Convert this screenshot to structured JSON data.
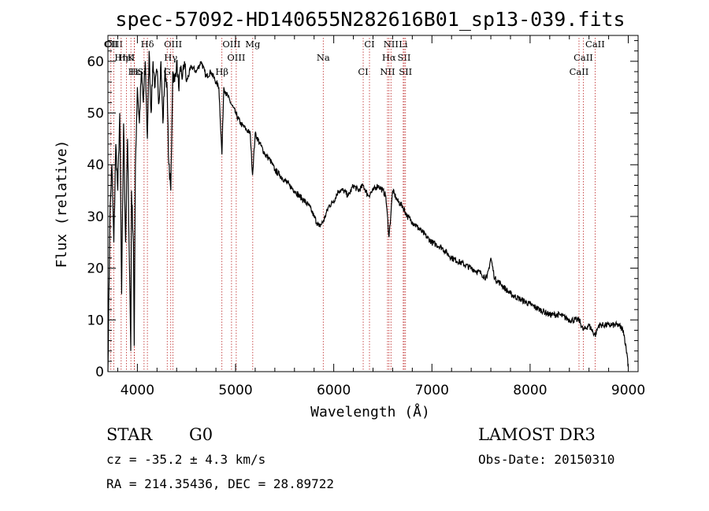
{
  "chart_data": {
    "type": "line",
    "title": "spec-57092-HD140655N282616B01_sp13-039.fits",
    "xlabel": "Wavelength (Å)",
    "ylabel": "Flux (relative)",
    "xlim": [
      3700,
      9100
    ],
    "ylim": [
      0,
      65
    ],
    "xticks": [
      4000,
      5000,
      6000,
      7000,
      8000,
      9000
    ],
    "yticks": [
      0,
      10,
      20,
      30,
      40,
      50,
      60
    ],
    "series": [
      {
        "name": "flux",
        "x": [
          3700,
          3720,
          3740,
          3760,
          3780,
          3800,
          3820,
          3840,
          3860,
          3880,
          3900,
          3920,
          3933,
          3940,
          3960,
          3968,
          3980,
          4000,
          4020,
          4040,
          4060,
          4080,
          4102,
          4120,
          4140,
          4160,
          4180,
          4200,
          4220,
          4240,
          4260,
          4280,
          4300,
          4320,
          4340,
          4360,
          4380,
          4400,
          4420,
          4440,
          4460,
          4480,
          4500,
          4550,
          4600,
          4650,
          4700,
          4750,
          4800,
          4830,
          4861,
          4880,
          4900,
          4950,
          5000,
          5050,
          5100,
          5150,
          5173,
          5200,
          5250,
          5300,
          5350,
          5400,
          5450,
          5500,
          5550,
          5600,
          5650,
          5700,
          5750,
          5800,
          5850,
          5893,
          5950,
          6000,
          6050,
          6100,
          6150,
          6200,
          6250,
          6300,
          6350,
          6400,
          6450,
          6500,
          6530,
          6563,
          6600,
          6650,
          6700,
          6750,
          6800,
          6850,
          6900,
          6950,
          7000,
          7100,
          7200,
          7300,
          7400,
          7500,
          7560,
          7600,
          7640,
          7700,
          7800,
          7900,
          8000,
          8100,
          8200,
          8300,
          8400,
          8500,
          8542,
          8600,
          8662,
          8700,
          8800,
          8900,
          8950,
          8990,
          9000
        ],
        "values": [
          0,
          30,
          40,
          25,
          44,
          35,
          50,
          15,
          48,
          25,
          45,
          20,
          4,
          35,
          25,
          5,
          40,
          55,
          48,
          58,
          52,
          60,
          45,
          62,
          50,
          60,
          55,
          58,
          52,
          60,
          48,
          58,
          56,
          40,
          35,
          58,
          56,
          60,
          55,
          58,
          57,
          60,
          56,
          59,
          58,
          60,
          57,
          58,
          56,
          55,
          42,
          55,
          54,
          52,
          50,
          48,
          47,
          46,
          38,
          46,
          44,
          42,
          41,
          39,
          38,
          37,
          36,
          35,
          34,
          33,
          32,
          30,
          28,
          29,
          32,
          33,
          35,
          35,
          34,
          36,
          35,
          36,
          34,
          35,
          36,
          35,
          34,
          26,
          35,
          33,
          32,
          30,
          29,
          28,
          27,
          26,
          25,
          24,
          22,
          21,
          20,
          19,
          18,
          22,
          18,
          17,
          15,
          14,
          13,
          12,
          11,
          11,
          10,
          10,
          8,
          9,
          7,
          9,
          9,
          9,
          8,
          3,
          1
        ]
      }
    ],
    "line_markers": [
      {
        "label": "Hδ",
        "x": 4102
      },
      {
        "label": "K",
        "x": 3934
      },
      {
        "label": "Hε",
        "x": 3970
      },
      {
        "label": "CII",
        "x": 3730
      },
      {
        "label": "HeI",
        "x": 3889
      },
      {
        "label": "SII",
        "x": 4068
      },
      {
        "label": "OIII",
        "x": 3760
      },
      {
        "label": "Hη",
        "x": 3835
      },
      {
        "label": "H",
        "x": 3968
      },
      {
        "label": "OIII",
        "x": 4363
      },
      {
        "label": "Hγ",
        "x": 4340
      },
      {
        "label": "G",
        "x": 4304
      },
      {
        "label": "OIII",
        "x": 4959
      },
      {
        "label": "OIII",
        "x": 5007
      },
      {
        "label": "Hβ",
        "x": 4861
      },
      {
        "label": "Mg",
        "x": 5175
      },
      {
        "label": "Na",
        "x": 5893
      },
      {
        "label": "CI",
        "x": 6300
      },
      {
        "label": "CI",
        "x": 6364
      },
      {
        "label": "Hα",
        "x": 6563
      },
      {
        "label": "NII",
        "x": 6548
      },
      {
        "label": "NII",
        "x": 6583
      },
      {
        "label": "SII",
        "x": 6717
      },
      {
        "label": "SII",
        "x": 6731
      },
      {
        "label": "Li",
        "x": 6708
      },
      {
        "label": "CaII",
        "x": 8542
      },
      {
        "label": "CaII",
        "x": 8498
      },
      {
        "label": "CaII",
        "x": 8662
      }
    ]
  },
  "info": {
    "object_class": "STAR",
    "subclass": "G0",
    "survey": "LAMOST DR3",
    "redshift": "cz = -35.2 ± 4.3 km/s",
    "obs_date": "Obs-Date: 20150310",
    "coords": "RA = 214.35436, DEC =  28.89722"
  }
}
